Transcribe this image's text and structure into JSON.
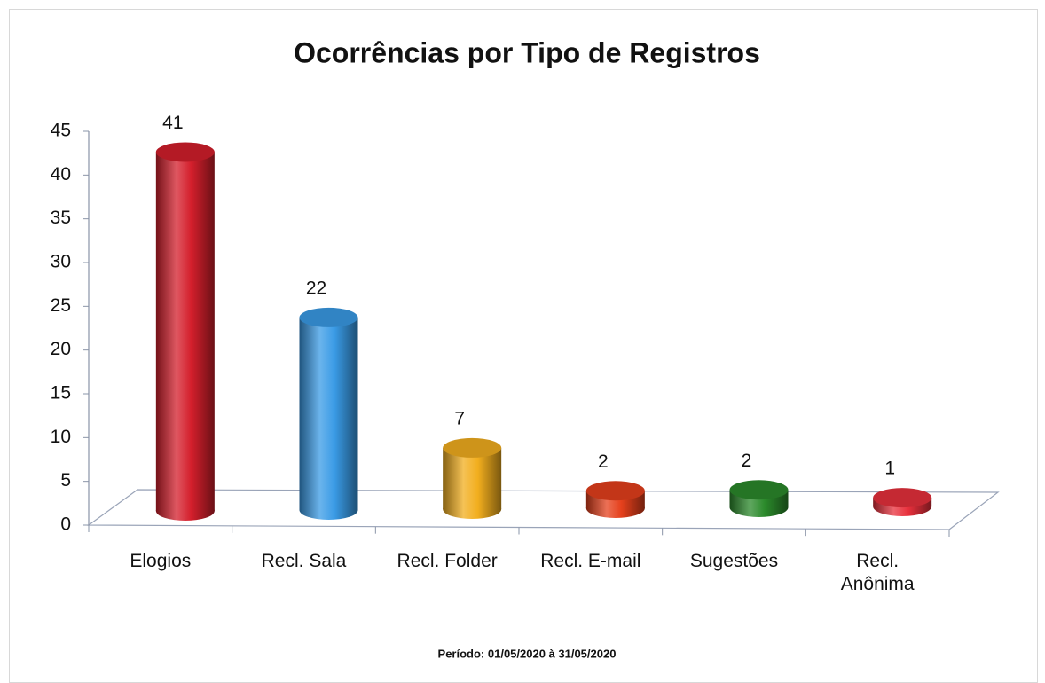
{
  "chart_data": {
    "type": "bar3d",
    "title": "Ocorrências por Tipo de Registros",
    "subtitle": "Período: 01/05/2020 à 31/05/2020",
    "categories": [
      "Elogios",
      "Recl. Sala",
      "Recl. Folder",
      "Recl. E-mail",
      "Sugestões",
      "Recl. Anônima"
    ],
    "values": [
      41,
      22,
      7,
      2,
      2,
      1
    ],
    "colors": [
      "#d41f2c",
      "#3a9be6",
      "#f2ae1e",
      "#e5401c",
      "#2b8a2b",
      "#e8303c"
    ],
    "ylim": [
      0,
      45
    ],
    "yticks": [
      0,
      5,
      10,
      15,
      20,
      25,
      30,
      35,
      40,
      45
    ]
  }
}
